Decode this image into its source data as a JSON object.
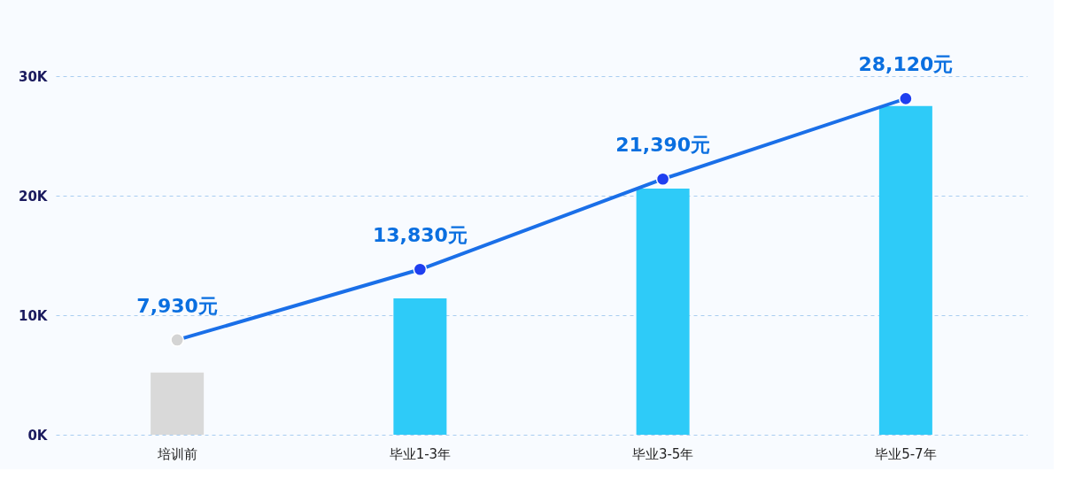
{
  "chart_data": {
    "type": "bar",
    "categories": [
      "培训前",
      "毕业1-3年",
      "毕业3-5年",
      "毕业5-7年"
    ],
    "series": [
      {
        "colors": [
          "#d9d9d9",
          "#2ecbf8",
          "#2ecbf8",
          "#2ecbf8"
        ],
        "values": [
          5200,
          11400,
          20600,
          27500
        ]
      },
      {
        "type": "line",
        "color": "#1a6fe8",
        "colors": [
          "#d4d4d4",
          "#1f3ff0",
          "#1f3ff0",
          "#1f3ff0"
        ],
        "values": [
          7930,
          13830,
          21390,
          28120
        ],
        "value_labels": [
          "7,930元",
          "13,830元",
          "21,390元",
          "28,120元"
        ]
      }
    ],
    "ylim": [
      0,
      30000
    ],
    "yticks": [
      {
        "value": 0,
        "label": "0K"
      },
      {
        "value": 10000,
        "label": "10K"
      },
      {
        "value": 20000,
        "label": "20K"
      },
      {
        "value": 30000,
        "label": "30K"
      }
    ],
    "grid": "y",
    "marker": "circle",
    "line_style": "solid"
  }
}
